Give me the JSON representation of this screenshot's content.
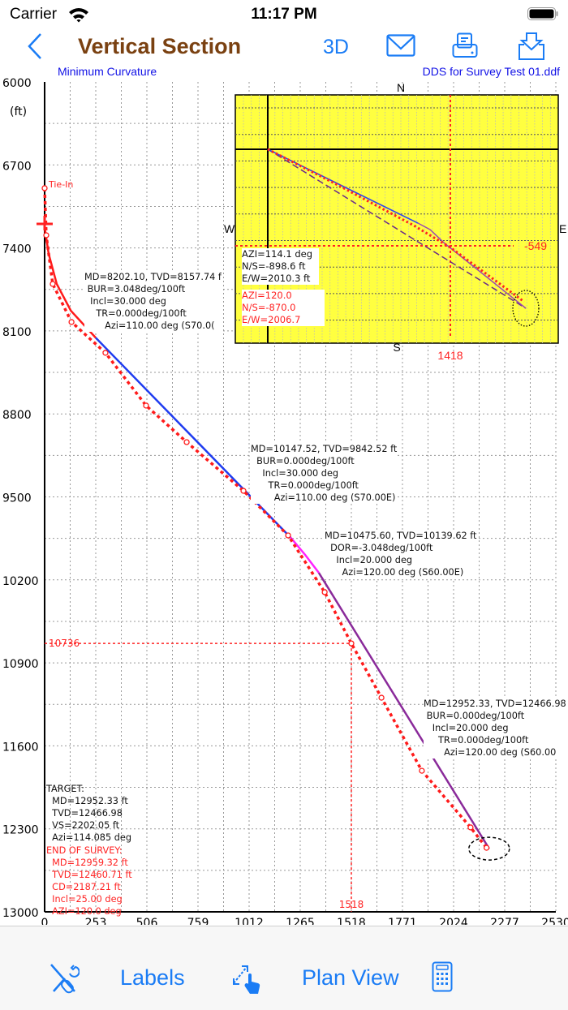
{
  "status_bar": {
    "carrier": "Carrier",
    "time": "11:17 PM"
  },
  "nav": {
    "back_icon": "chevron-left-icon",
    "title": "Vertical Section",
    "btn_3d": "3D",
    "icons": [
      "mail-icon",
      "print-icon",
      "download-icon"
    ]
  },
  "subheader": {
    "method": "Minimum Curvature",
    "file": "DDS for Survey Test 01.ddf"
  },
  "colors": {
    "accent": "#1a7cf5",
    "title": "#7a4111",
    "survey": "#ff1a1a",
    "build": "#ff1a1a",
    "hold": "#1f3cf0",
    "drop": "#ff22ff",
    "tangent": "#8a2a9a",
    "inset_bg": "#ffff33"
  },
  "chart_data": {
    "type": "line",
    "xlabel": "",
    "ylabel": "(ft)",
    "xlim": [
      0,
      2530
    ],
    "ylim": [
      6000,
      13000
    ],
    "y_reversed": true,
    "grid": true,
    "x_ticks": [
      "0",
      "253",
      "506",
      "759",
      "1012",
      "1265",
      "1518",
      "1771",
      "2024",
      "2277",
      "2530"
    ],
    "y_ticks": [
      "6000",
      "6700",
      "7400",
      "8100",
      "8800",
      "9500",
      "10200",
      "10900",
      "11600",
      "12300",
      "13000"
    ],
    "series": [
      {
        "segment": "build",
        "color": "#ff1a1a",
        "points": [
          [
            0,
            7225
          ],
          [
            20,
            7450
          ],
          [
            60,
            7704
          ],
          [
            130,
            7930
          ],
          [
            253,
            8158
          ]
        ]
      },
      {
        "segment": "hold",
        "color": "#1f3cf0",
        "points": [
          [
            253,
            8158
          ],
          [
            1217,
            9842
          ]
        ]
      },
      {
        "segment": "drop",
        "color": "#ff22ff",
        "points": [
          [
            1217,
            9842
          ],
          [
            1290,
            9990
          ],
          [
            1357,
            10140
          ]
        ]
      },
      {
        "segment": "tangent",
        "color": "#8a2a9a",
        "points": [
          [
            1357,
            10140
          ],
          [
            2200,
            12467
          ]
        ]
      },
      {
        "segment": "survey",
        "color": "#ff1a1a",
        "points": [
          [
            0,
            6896
          ],
          [
            8,
            7293
          ],
          [
            40,
            7704
          ],
          [
            133,
            8025
          ],
          [
            301,
            8285
          ],
          [
            502,
            8730
          ],
          [
            703,
            9038
          ],
          [
            984,
            9449
          ],
          [
            1205,
            9825
          ],
          [
            1386,
            10304
          ],
          [
            1518,
            10736
          ],
          [
            1667,
            11194
          ],
          [
            1867,
            11810
          ],
          [
            2108,
            12288
          ],
          [
            2187,
            12460
          ]
        ]
      }
    ],
    "tie_in_label": "Tie-In",
    "crosshair": {
      "x": 1518,
      "y": 10736,
      "x_label": "1518",
      "y_label": "10736"
    },
    "target": {
      "vs": 2200,
      "tvd": 12467
    },
    "annotations": [
      {
        "lines": [
          "MD=8202.10, TVD=8157.74 f",
          " BUR=3.048deg/100ft",
          "  Incl=30.000 deg",
          "    TR=0.000deg/100ft",
          "       Azi=110.00 deg (S70.0("
        ]
      },
      {
        "lines": [
          "MD=10147.52, TVD=9842.52 ft",
          "  BUR=0.000deg/100ft",
          "    Incl=30.000 deg",
          "      TR=0.000deg/100ft",
          "        Azi=110.00 deg (S70.00E)"
        ]
      },
      {
        "lines": [
          "MD=10475.60, TVD=10139.62 ft",
          "  DOR=-3.048deg/100ft",
          "    Incl=20.000 deg",
          "      Azi=120.00 deg (S60.00E)"
        ]
      },
      {
        "lines": [
          "MD=12952.33, TVD=12466.98",
          " BUR=0.000deg/100ft",
          "   Incl=20.000 deg",
          "     TR=0.000deg/100ft",
          "       Azi=120.00 deg (S60.00"
        ]
      }
    ],
    "target_info": [
      "TARGET:",
      "  MD=12952.33 ft",
      "  TVD=12466.98",
      "  VS=2202.05 ft",
      "  Azi=114.085 deg"
    ],
    "end_of_survey": [
      "END OF SURVEY:",
      "  MD=12959.32 ft",
      "  TVD=12460.71 ft",
      "  CD=2187.21 ft",
      "  Incl=25.00 deg",
      "  AZI=120.0 deg"
    ]
  },
  "inset": {
    "compass": {
      "n": "N",
      "s": "S",
      "w": "W",
      "e": "E"
    },
    "crosshair": {
      "x_label": "1418",
      "y_label": "-549"
    },
    "target_text": [
      "AZI=114.1 deg",
      "N/S=-898.6 ft",
      "E/W=2010.3 ft"
    ],
    "survey_text": [
      "AZI=120.0",
      "N/S=-870.0",
      "E/W=2006.7"
    ]
  },
  "toolbar": {
    "icons": [
      "tools-icon",
      "resize-gesture-icon",
      "calculator-icon"
    ],
    "labels": "Labels",
    "plan_view": "Plan View"
  }
}
